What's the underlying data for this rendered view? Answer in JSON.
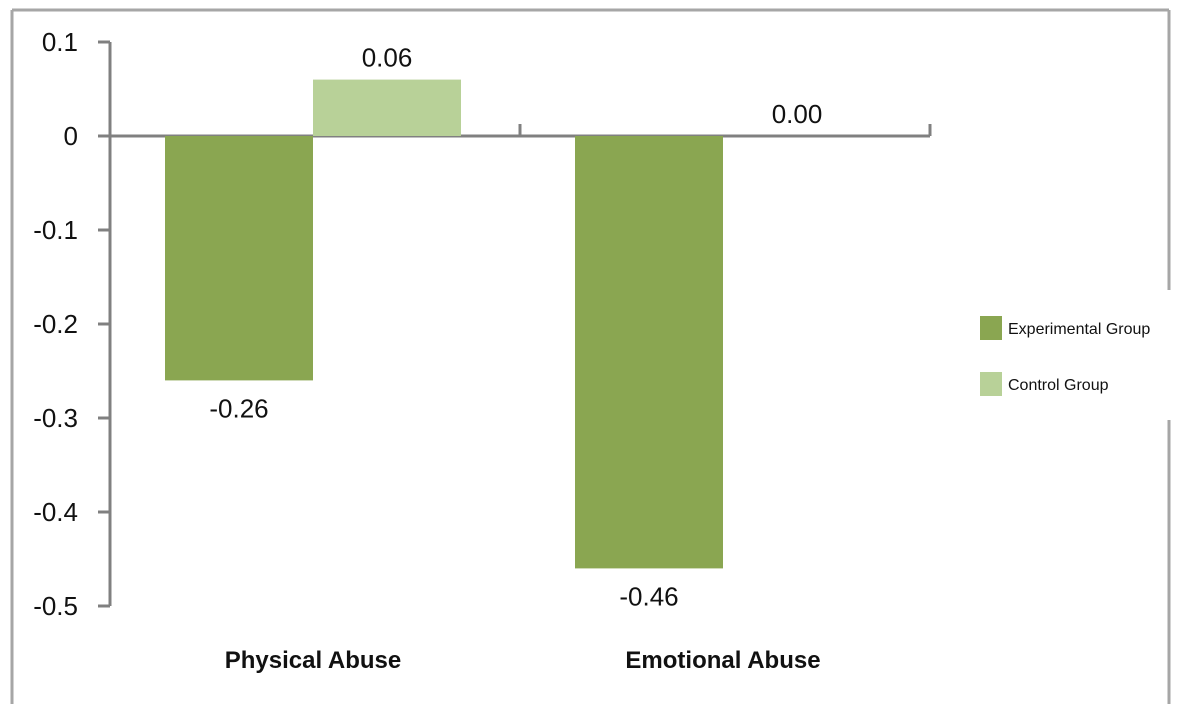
{
  "chart_data": {
    "type": "bar",
    "categories": [
      "Physical Abuse",
      "Emotional Abuse"
    ],
    "series": [
      {
        "name": "Experimental Group",
        "values": [
          -0.26,
          -0.46
        ],
        "labels": [
          "-0.26",
          "-0.46"
        ],
        "color": "#8aa651"
      },
      {
        "name": "Control Group",
        "values": [
          0.06,
          0.0
        ],
        "labels": [
          "0.06",
          "0.00"
        ],
        "color": "#b8d198"
      }
    ],
    "yticks": [
      0.1,
      0,
      -0.1,
      -0.2,
      -0.3,
      -0.4,
      -0.5
    ],
    "ytick_labels": [
      "0.1",
      "0",
      "-0.1",
      "-0.2",
      "-0.3",
      "-0.4",
      "-0.5"
    ],
    "ylim": [
      -0.5,
      0.1
    ],
    "title": "",
    "xlabel": "",
    "ylabel": "",
    "legend_position": "right",
    "grid": false,
    "axis_color": "#808080",
    "frame_color": "#a6a6a6"
  }
}
